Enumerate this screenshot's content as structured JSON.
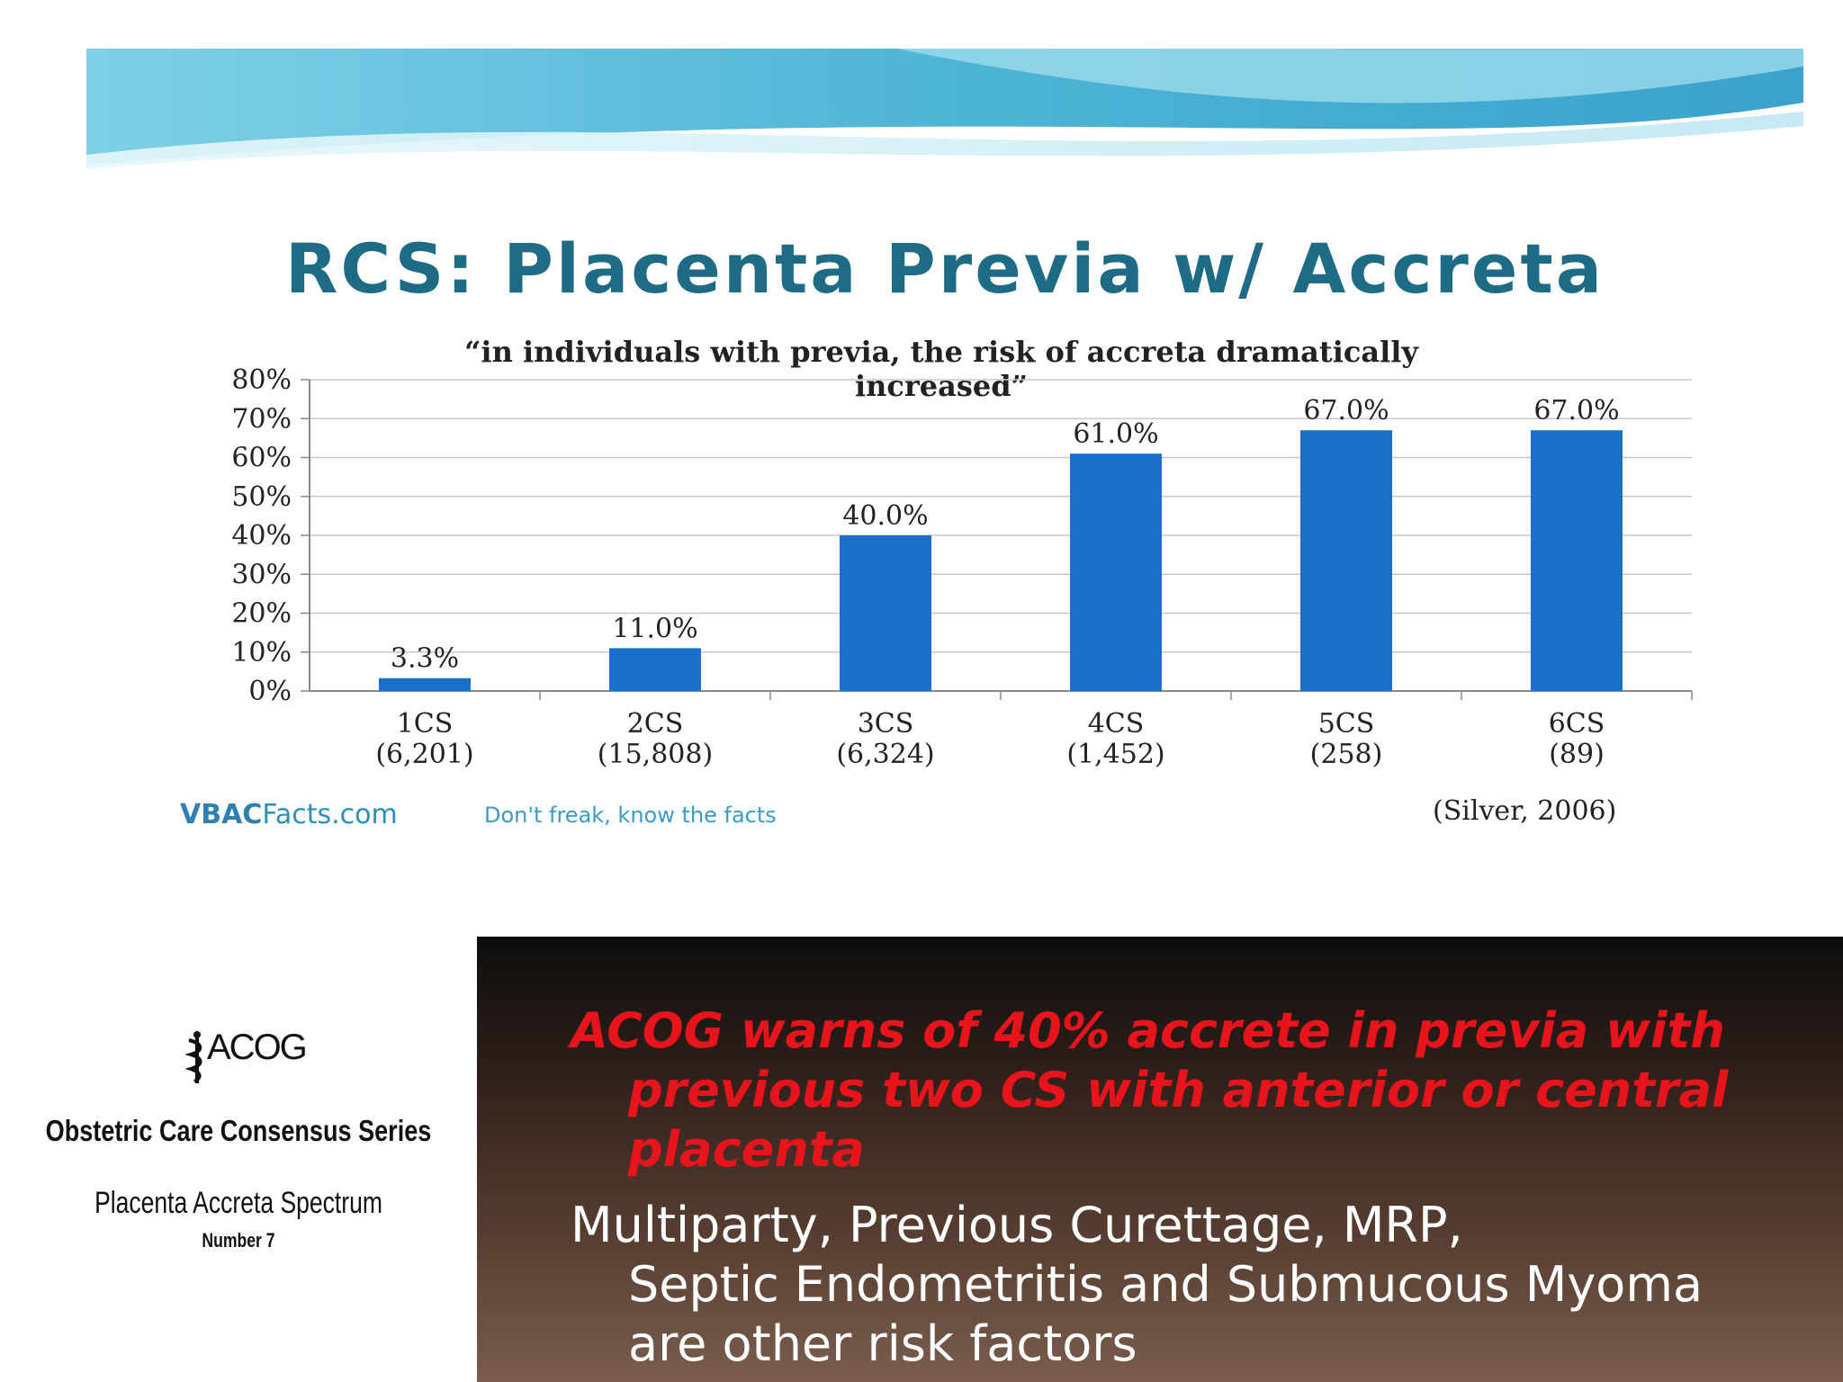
{
  "chart_data": {
    "type": "bar",
    "title": "RCS: Placenta Previa w/ Accreta",
    "subtitle_line1": "“in individuals with previa, the risk of accreta dramatically",
    "subtitle_line2": "increased”",
    "categories": [
      "1CS",
      "2CS",
      "3CS",
      "4CS",
      "5CS",
      "6CS"
    ],
    "category_counts": [
      "(6,201)",
      "(15,808)",
      "(6,324)",
      "(1,452)",
      "(258)",
      "(89)"
    ],
    "values": [
      3.3,
      11.0,
      40.0,
      61.0,
      67.0,
      67.0
    ],
    "data_labels": [
      "3.3%",
      "11.0%",
      "40.0%",
      "61.0%",
      "67.0%",
      "67.0%"
    ],
    "ylim": [
      0,
      80
    ],
    "yticks": [
      "0%",
      "10%",
      "20%",
      "30%",
      "40%",
      "50%",
      "60%",
      "70%",
      "80%"
    ],
    "grid": true,
    "bar_color": "#1a6fca",
    "xlabel": "",
    "ylabel": ""
  },
  "source": {
    "brand_strong": "VBAC",
    "brand_rest": "Facts.com",
    "tagline": "Don't freak, know the facts",
    "citation": "(Silver, 2006)"
  },
  "acog": {
    "logo_text": "ACOG",
    "series": "Obstetric Care Consensus Series",
    "title": "Placenta Accreta Spectrum",
    "number": "Number 7"
  },
  "bullets": {
    "red_first": "ACOG warns of 40% accrete in previa with",
    "red_rest_1": "previous two CS with anterior or central",
    "red_rest_2": "placenta",
    "white_first": "Multiparty, Previous Curettage, MRP,",
    "white_rest_1": "Septic Endometritis and Submucous Myoma",
    "white_rest_2": "are other risk factors"
  },
  "colors": {
    "title": "#1d6b84",
    "red_text": "#e8141c",
    "banner_light": "#c9eef7",
    "banner_dark": "#3aa6c8"
  }
}
